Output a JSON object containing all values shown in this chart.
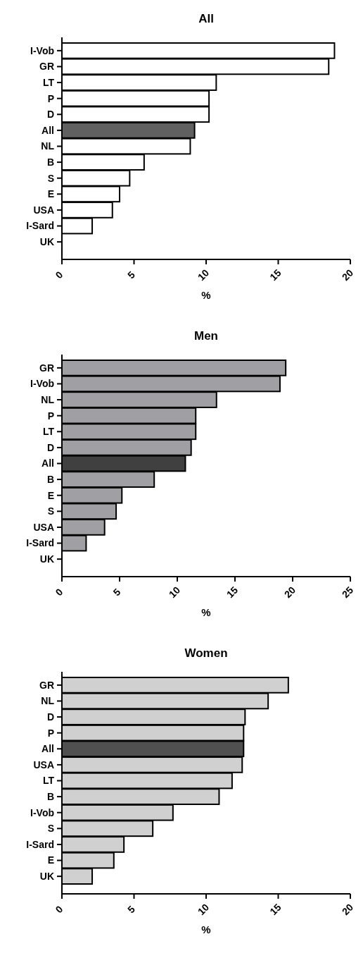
{
  "chart_data": [
    {
      "type": "bar",
      "orientation": "horizontal",
      "title": "All",
      "xlabel": "%",
      "categories": [
        "I-Vob",
        "GR",
        "LT",
        "P",
        "D",
        "All",
        "NL",
        "B",
        "S",
        "E",
        "USA",
        "I-Sard",
        "UK"
      ],
      "values": [
        18.9,
        18.5,
        10.7,
        10.2,
        10.2,
        9.2,
        8.9,
        5.7,
        4.7,
        4.0,
        3.5,
        2.1,
        0
      ],
      "colors": [
        "#ffffff",
        "#ffffff",
        "#ffffff",
        "#ffffff",
        "#ffffff",
        "#606060",
        "#ffffff",
        "#ffffff",
        "#ffffff",
        "#ffffff",
        "#ffffff",
        "#ffffff",
        "#ffffff"
      ],
      "xlim": [
        0,
        20
      ],
      "xticks": [
        0,
        5,
        10,
        15,
        20
      ],
      "grid": false
    },
    {
      "type": "bar",
      "orientation": "horizontal",
      "title": "Men",
      "xlabel": "%",
      "categories": [
        "GR",
        "I-Vob",
        "NL",
        "P",
        "LT",
        "D",
        "All",
        "B",
        "E",
        "S",
        "USA",
        "I-Sard",
        "UK"
      ],
      "values": [
        19.4,
        18.9,
        13.4,
        11.6,
        11.6,
        11.2,
        10.7,
        8.0,
        5.2,
        4.7,
        3.7,
        2.1,
        0
      ],
      "colors": [
        "#a0a0a4",
        "#a0a0a4",
        "#a0a0a4",
        "#a0a0a4",
        "#a0a0a4",
        "#a0a0a4",
        "#404040",
        "#a0a0a4",
        "#a0a0a4",
        "#a0a0a4",
        "#a0a0a4",
        "#a0a0a4",
        "#a0a0a4"
      ],
      "xlim": [
        0,
        25
      ],
      "xticks": [
        0,
        5,
        10,
        15,
        20,
        25
      ],
      "grid": false
    },
    {
      "type": "bar",
      "orientation": "horizontal",
      "title": "Women",
      "xlabel": "%",
      "categories": [
        "GR",
        "NL",
        "D",
        "P",
        "All",
        "USA",
        "LT",
        "B",
        "I-Vob",
        "S",
        "I-Sard",
        "E",
        "UK"
      ],
      "values": [
        15.7,
        14.3,
        12.7,
        12.6,
        12.6,
        12.5,
        11.8,
        10.9,
        7.7,
        6.3,
        4.3,
        3.6,
        2.1
      ],
      "colors": [
        "#d0d0d0",
        "#d0d0d0",
        "#d0d0d0",
        "#d0d0d0",
        "#505050",
        "#d0d0d0",
        "#d0d0d0",
        "#d0d0d0",
        "#d0d0d0",
        "#d0d0d0",
        "#d0d0d0",
        "#d0d0d0",
        "#d0d0d0"
      ],
      "xlim": [
        0,
        20
      ],
      "xticks": [
        0,
        5,
        10,
        15,
        20
      ],
      "grid": false
    }
  ]
}
